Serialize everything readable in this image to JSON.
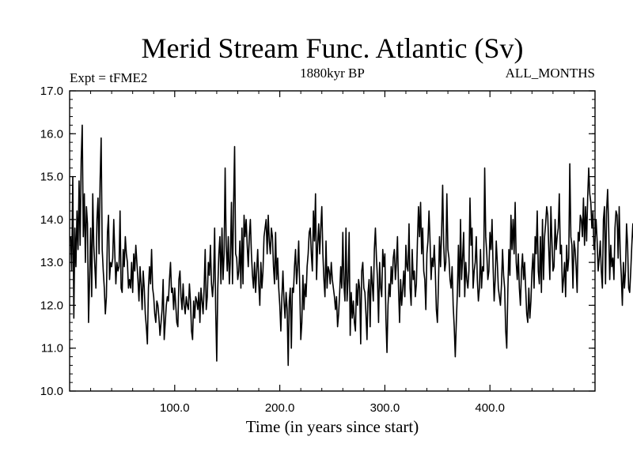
{
  "chart_data": {
    "type": "line",
    "title": "Merid Stream Func. Atlantic (Sv)",
    "subtitle_left": "Expt = tFME2",
    "subtitle_center": "1880kyr BP",
    "subtitle_right": "ALL_MONTHS",
    "xlabel": "Time (in years since start)",
    "ylabel": "",
    "xlim": [
      0,
      500
    ],
    "ylim": [
      10.0,
      17.0
    ],
    "x_ticks": [
      100,
      200,
      300,
      400
    ],
    "x_tick_labels": [
      "100.0",
      "200.0",
      "300.0",
      "400.0"
    ],
    "y_ticks": [
      10,
      11,
      12,
      13,
      14,
      15,
      16,
      17
    ],
    "y_tick_labels": [
      "10.0",
      "11.0",
      "12.0",
      "13.0",
      "14.0",
      "15.0",
      "16.0",
      "17.0"
    ],
    "grid": false,
    "series": [
      {
        "name": "Merid Stream Func. Atlantic",
        "x_start": 1,
        "x_step": 1,
        "values": [
          13.6,
          12.8,
          15.0,
          11.7,
          13.8,
          12.9,
          14.2,
          13.3,
          14.9,
          13.4,
          15.4,
          16.2,
          13.6,
          14.6,
          13.0,
          14.3,
          13.9,
          11.6,
          12.6,
          13.8,
          12.2,
          14.6,
          13.4,
          12.9,
          12.4,
          14.0,
          14.5,
          13.2,
          14.9,
          15.9,
          13.3,
          12.8,
          12.4,
          11.8,
          12.2,
          13.7,
          14.1,
          12.6,
          13.0,
          12.9,
          13.1,
          14.0,
          13.2,
          12.5,
          13.0,
          12.8,
          12.9,
          14.2,
          12.4,
          12.3,
          13.3,
          12.9,
          13.6,
          13.2,
          13.0,
          12.4,
          12.6,
          12.4,
          13.0,
          12.3,
          13.2,
          12.8,
          13.4,
          13.0,
          12.6,
          12.1,
          12.9,
          12.5,
          11.9,
          12.8,
          12.4,
          11.8,
          11.5,
          11.1,
          12.4,
          12.9,
          12.5,
          13.3,
          12.4,
          12.2,
          11.8,
          11.6,
          12.1,
          12.0,
          11.7,
          11.3,
          11.6,
          11.9,
          12.6,
          11.2,
          11.6,
          12.0,
          12.2,
          12.1,
          12.6,
          13.0,
          12.3,
          12.4,
          11.9,
          12.4,
          12.0,
          11.6,
          11.5,
          12.6,
          12.8,
          12.2,
          11.9,
          12.5,
          12.0,
          11.8,
          12.2,
          12.0,
          11.9,
          12.5,
          12.1,
          11.4,
          11.2,
          12.1,
          11.7,
          12.2,
          12.1,
          11.9,
          12.3,
          11.6,
          12.4,
          12.1,
          11.8,
          12.4,
          13.3,
          11.9,
          12.2,
          13.0,
          12.7,
          13.4,
          12.5,
          12.2,
          12.6,
          13.8,
          11.9,
          10.7,
          12.4,
          13.2,
          13.6,
          12.5,
          13.8,
          12.6,
          13.2,
          15.2,
          13.4,
          12.8,
          13.6,
          12.5,
          13.1,
          14.4,
          12.5,
          14.3,
          15.7,
          13.2,
          13.1,
          12.6,
          12.8,
          13.5,
          12.4,
          13.8,
          12.5,
          14.1,
          13.6,
          14.0,
          13.4,
          12.9,
          13.6,
          14.0,
          13.2,
          12.7,
          12.4,
          13.0,
          12.3,
          12.8,
          13.3,
          12.5,
          12.0,
          13.0,
          12.4,
          12.8,
          13.6,
          13.8,
          14.0,
          13.2,
          14.1,
          13.5,
          13.2,
          13.8,
          13.6,
          12.9,
          12.5,
          13.7,
          12.6,
          13.1,
          12.4,
          12.0,
          11.4,
          12.2,
          12.8,
          12.1,
          11.7,
          12.3,
          11.9,
          10.6,
          12.1,
          12.4,
          11.0,
          12.4,
          12.3,
          12.9,
          13.3,
          12.5,
          12.9,
          13.5,
          12.4,
          11.2,
          11.6,
          12.7,
          11.9,
          12.5,
          12.2,
          12.9,
          13.2,
          13.7,
          13.8,
          13.2,
          12.8,
          14.2,
          13.5,
          14.6,
          12.6,
          13.4,
          13.9,
          13.2,
          13.8,
          14.3,
          13.2,
          12.6,
          12.2,
          13.5,
          12.4,
          12.9,
          12.8,
          12.5,
          13.0,
          12.6,
          12.4,
          12.2,
          11.9,
          12.2,
          11.5,
          11.8,
          12.3,
          12.9,
          12.4,
          13.7,
          12.5,
          12.1,
          13.8,
          12.1,
          12.6,
          13.7,
          11.3,
          12.3,
          11.7,
          12.1,
          11.6,
          11.4,
          12.5,
          12.0,
          12.6,
          12.4,
          11.1,
          12.8,
          13.0,
          12.4,
          12.3,
          11.8,
          11.2,
          12.3,
          12.6,
          11.5,
          12.9,
          12.5,
          12.1,
          13.3,
          13.8,
          13.1,
          12.6,
          11.6,
          13.0,
          12.4,
          12.2,
          13.3,
          12.9,
          13.2,
          11.7,
          10.9,
          12.0,
          12.5,
          12.2,
          12.9,
          12.5,
          13.1,
          13.3,
          12.6,
          13.0,
          13.6,
          12.4,
          11.6,
          12.6,
          12.0,
          12.4,
          12.8,
          12.2,
          13.4,
          12.9,
          12.8,
          13.9,
          12.4,
          12.0,
          13.3,
          12.6,
          12.8,
          12.2,
          12.5,
          13.5,
          14.3,
          13.6,
          14.4,
          13.2,
          13.8,
          12.8,
          12.6,
          11.9,
          13.2,
          13.5,
          14.2,
          13.5,
          12.6,
          13.1,
          12.9,
          13.4,
          12.8,
          11.9,
          11.6,
          12.5,
          13.6,
          12.9,
          13.7,
          14.8,
          13.4,
          12.8,
          13.0,
          14.6,
          13.3,
          13.1,
          12.6,
          12.4,
          12.9,
          12.0,
          11.5,
          10.8,
          11.6,
          12.3,
          13.4,
          12.2,
          14.0,
          12.6,
          13.1,
          13.7,
          12.2,
          13.0,
          12.6,
          12.4,
          12.8,
          14.5,
          13.4,
          13.8,
          12.4,
          12.8,
          13.0,
          13.6,
          12.6,
          12.1,
          12.4,
          13.3,
          12.4,
          12.9,
          12.8,
          15.2,
          13.6,
          13.2,
          12.6,
          12.8,
          13.7,
          13.3,
          14.0,
          12.9,
          12.1,
          12.6,
          13.5,
          13.0,
          12.4,
          12.2,
          12.0,
          12.5,
          13.3,
          12.7,
          12.4,
          11.4,
          11.0,
          12.3,
          13.3,
          12.7,
          14.1,
          13.3,
          14.0,
          13.2,
          14.4,
          13.0,
          12.6,
          13.2,
          12.4,
          12.0,
          12.8,
          13.2,
          12.6,
          13.0,
          12.4,
          11.8,
          11.6,
          12.4,
          11.7,
          12.1,
          12.8,
          13.2,
          12.4,
          13.6,
          13.2,
          14.2,
          12.8,
          12.5,
          13.6,
          12.3,
          14.0,
          12.6,
          13.6,
          13.9,
          14.3,
          14.1,
          13.3,
          12.6,
          14.3,
          13.5,
          12.8,
          12.9,
          14.0,
          13.3,
          13.6,
          13.8,
          14.6,
          13.2,
          13.4,
          12.3,
          12.6,
          13.0,
          12.2,
          13.4,
          12.8,
          13.1,
          15.3,
          13.6,
          13.4,
          12.4,
          13.5,
          13.3,
          12.9,
          12.3,
          13.7,
          13.5,
          14.1,
          14.0,
          13.6,
          14.5,
          13.4,
          14.3,
          13.5,
          14.5,
          15.2,
          14.6,
          14.4,
          13.8,
          14.2,
          13.3,
          13.5,
          14.0,
          13.5,
          12.8,
          13.1,
          13.5,
          12.8,
          12.4,
          14.0,
          14.3,
          12.5,
          14.2,
          14.7,
          13.8,
          12.6,
          13.4,
          12.9,
          13.1,
          12.6,
          13.8,
          14.2,
          14.1,
          13.1,
          14.3,
          13.2,
          12.7,
          12.0,
          13.0,
          12.4,
          12.8,
          13.9,
          13.4,
          12.4,
          12.3,
          12.8,
          13.4,
          13.9,
          13.4
        ]
      }
    ]
  }
}
